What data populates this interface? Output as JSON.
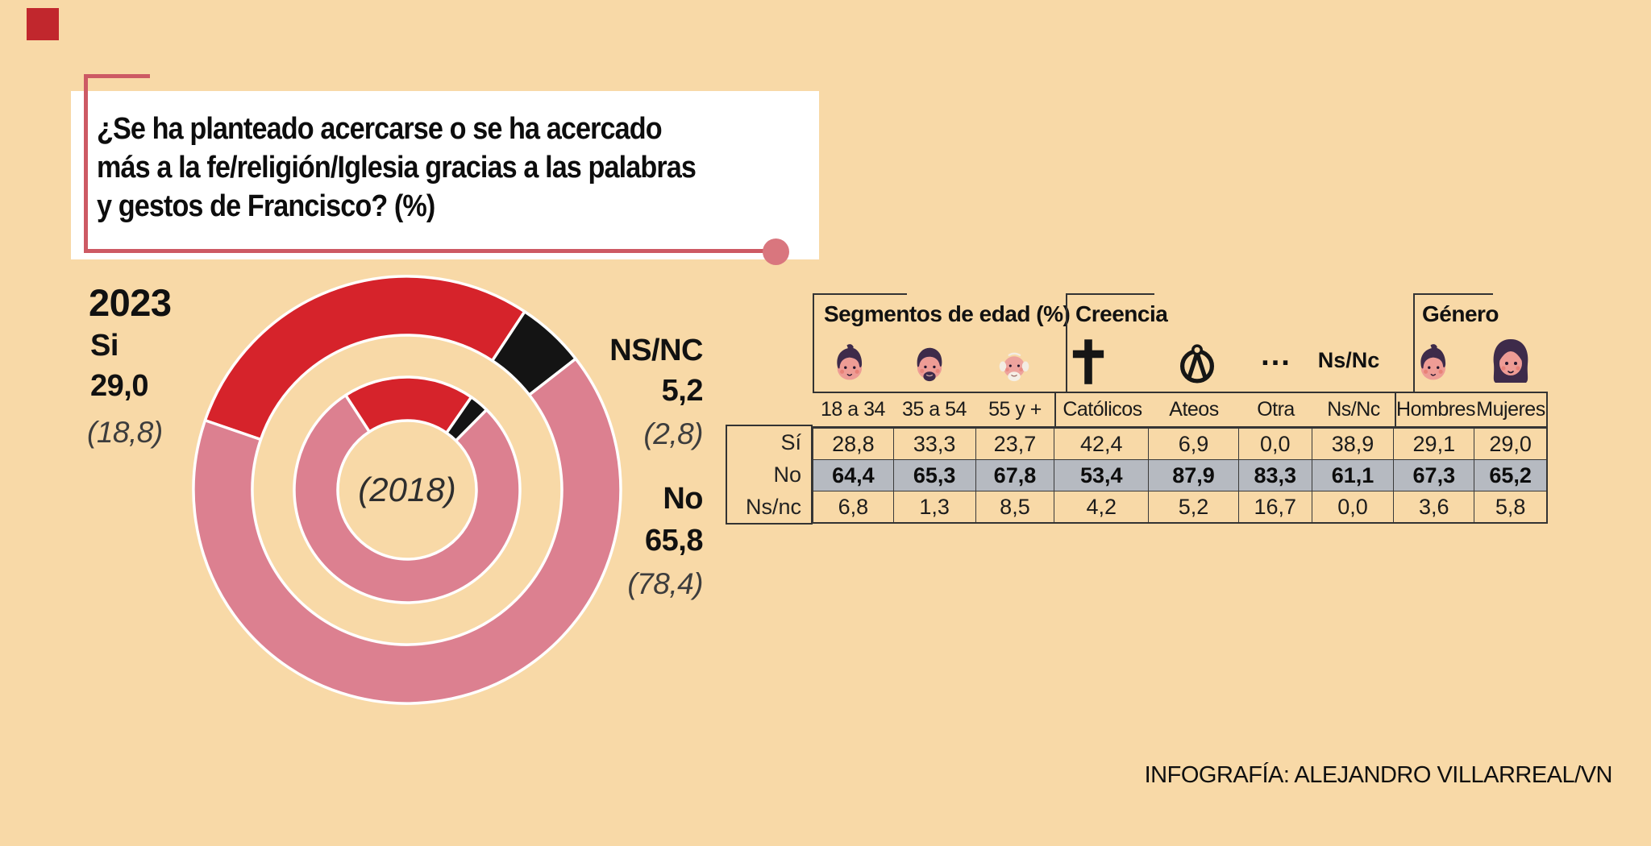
{
  "title": {
    "lines": [
      "¿Se ha planteado acercarse o se ha acercado",
      "más a la fe/religión/Iglesia gracias a las palabras",
      "y gestos de Francisco? (%)"
    ]
  },
  "donut": {
    "year_label": "2023",
    "center_label": "(2018)",
    "left": {
      "label": "Si",
      "value": "29,0",
      "prev": "(18,8)"
    },
    "right_nsnc": {
      "label": "NS/NC",
      "value": "5,2",
      "prev": "(2,8)"
    },
    "right_no": {
      "label": "No",
      "value": "65,8",
      "prev": "(78,4)"
    }
  },
  "chart_data": {
    "type": "donut",
    "title": "¿Se ha planteado acercarse o se ha acercado más a la fe/religión/Iglesia gracias a las palabras y gestos de Francisco? (%)",
    "legend_position": "left-right callouts",
    "rings": [
      {
        "year": "2023",
        "position": "outer",
        "segments": [
          {
            "label": "Si",
            "value": 29.0,
            "color": "#d6232b"
          },
          {
            "label": "NS/NC",
            "value": 5.2,
            "color": "#141414"
          },
          {
            "label": "No",
            "value": 65.8,
            "color": "#dc8090"
          }
        ]
      },
      {
        "year": "2018",
        "position": "inner",
        "segments": [
          {
            "label": "Si",
            "value": 18.8,
            "color": "#d6232b"
          },
          {
            "label": "NS/NC",
            "value": 2.8,
            "color": "#141414"
          },
          {
            "label": "No",
            "value": 78.4,
            "color": "#dc8090"
          }
        ]
      }
    ],
    "start_angles": {
      "outer": -71,
      "inner": -33
    }
  },
  "table": {
    "groups": [
      {
        "label": "Segmentos de edad (%)"
      },
      {
        "label": "Creencia"
      },
      {
        "label": "Género"
      }
    ],
    "otra_symbol": "...",
    "nsnc_header": "Ns/Nc",
    "columns": [
      "18 a 34",
      "35 a 54",
      "55 y +",
      "Católicos",
      "Ateos",
      "Otra",
      "Ns/Nc",
      "Hombres",
      "Mujeres"
    ],
    "rows": [
      {
        "label": "Sí",
        "highlight": false,
        "values": [
          "28,8",
          "33,3",
          "23,7",
          "42,4",
          "6,9",
          "0,0",
          "38,9",
          "29,1",
          "29,0"
        ]
      },
      {
        "label": "No",
        "highlight": true,
        "values": [
          "64,4",
          "65,3",
          "67,8",
          "53,4",
          "87,9",
          "83,3",
          "61,1",
          "67,3",
          "65,2"
        ]
      },
      {
        "label": "Ns/nc",
        "highlight": false,
        "values": [
          "6,8",
          "1,3",
          "8,5",
          "4,2",
          "5,2",
          "16,7",
          "0,0",
          "3,6",
          "5,8"
        ]
      }
    ]
  },
  "footer": {
    "credit": "INFOGRAFÍA: ALEJANDRO VILLARREAL/VN"
  },
  "icons": {
    "age_18_34": "young-man-face",
    "age_35_54": "bearded-man-face",
    "age_55_plus": "elderly-man-face",
    "catholics": "latin-cross",
    "atheists": "atheism-circle-a",
    "other_belief": "ellipsis-dots",
    "men": "young-man-face",
    "women": "woman-face"
  },
  "colors": {
    "background": "#f8d9a7",
    "red": "#d6232b",
    "pink": "#dc8090",
    "black": "#141414",
    "bracket": "#cd5a64",
    "dot": "#d9767e",
    "highlight_row_bg": "#b6bac1",
    "table_border": "#333333"
  }
}
